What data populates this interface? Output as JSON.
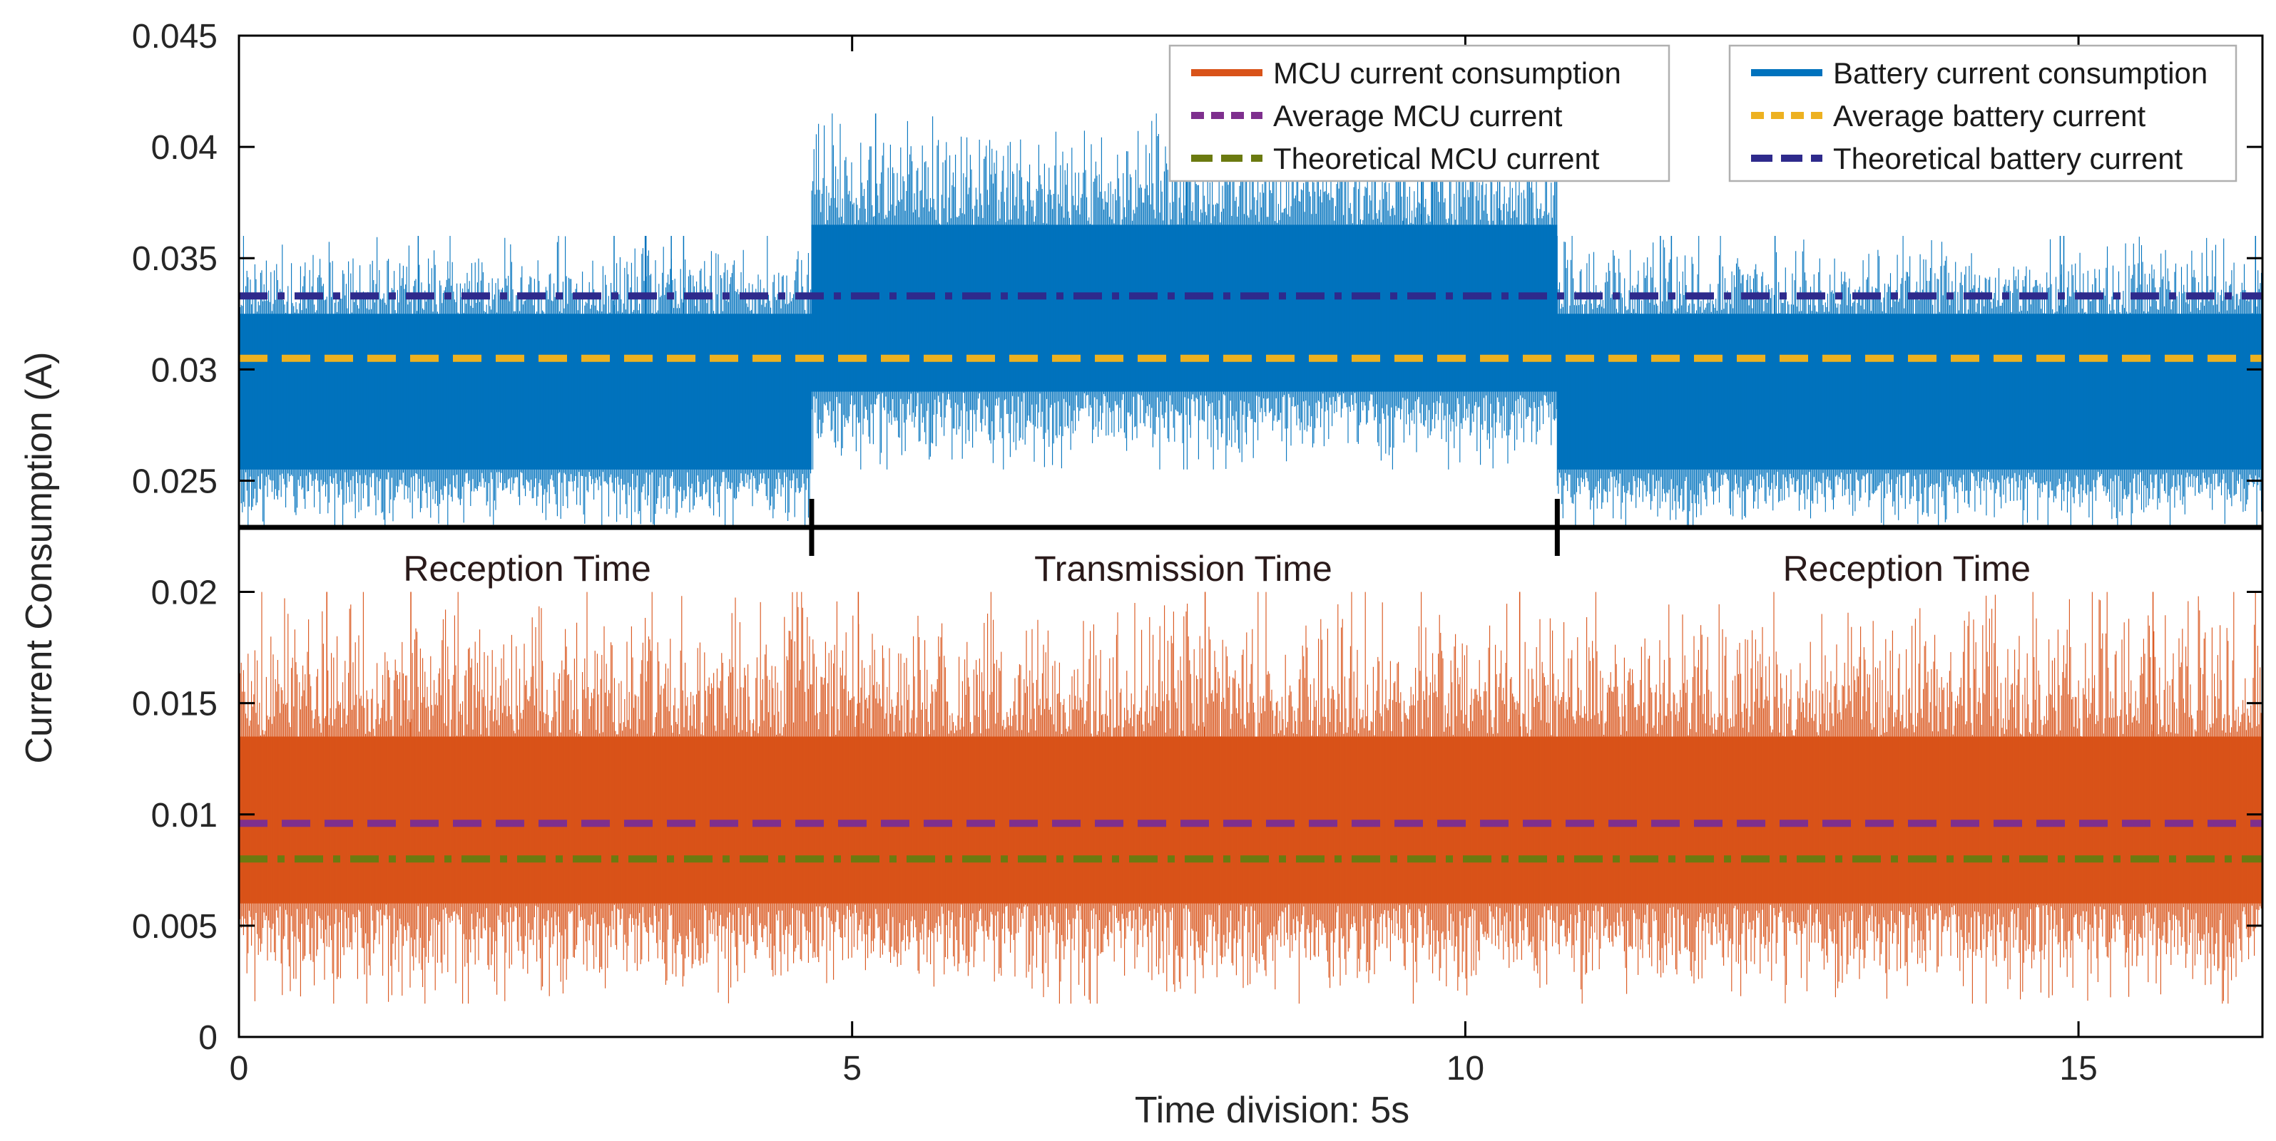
{
  "chart_data": {
    "type": "line",
    "title": "",
    "xlabel": "Time division: 5s",
    "ylabel": "Current Consumption (A)",
    "xlim": [
      0,
      16.5
    ],
    "ylim": [
      0,
      0.045
    ],
    "xticks": [
      0,
      5,
      10,
      15
    ],
    "yticks": [
      0,
      0.005,
      0.01,
      0.015,
      0.02,
      0.025,
      0.03,
      0.035,
      0.04,
      0.045
    ],
    "xtick_labels": [
      "0",
      "5",
      "10",
      "15"
    ],
    "ytick_labels": [
      "0",
      "0.005",
      "0.01",
      "0.015",
      "0.02",
      "0.025",
      "0.03",
      "0.035",
      "0.04",
      "0.045"
    ],
    "colors": {
      "mcu": "#D95319",
      "battery": "#0072BD",
      "avg_mcu": "#7E2F8E",
      "avg_battery": "#EDB120",
      "theo_mcu": "#6B7A10",
      "theo_battery": "#2E2A8C"
    },
    "series": [
      {
        "name": "MCU current consumption",
        "style": "noisy-trace",
        "segments": [
          {
            "x_start": 0,
            "x_end": 16.5,
            "mean": 0.0097,
            "typical_low": 0.006,
            "typical_high": 0.0135,
            "min": 0.0015,
            "max": 0.02
          }
        ]
      },
      {
        "name": "Battery current consumption",
        "style": "noisy-trace",
        "segments": [
          {
            "x_start": 0,
            "x_end": 4.67,
            "mean": 0.0289,
            "typical_low": 0.0255,
            "typical_high": 0.0325,
            "min": 0.0228,
            "max": 0.036
          },
          {
            "x_start": 4.67,
            "x_end": 10.75,
            "mean": 0.0327,
            "typical_low": 0.029,
            "typical_high": 0.0365,
            "min": 0.0255,
            "max": 0.0415
          },
          {
            "x_start": 10.75,
            "x_end": 16.5,
            "mean": 0.0289,
            "typical_low": 0.0255,
            "typical_high": 0.0325,
            "min": 0.0228,
            "max": 0.036
          }
        ]
      },
      {
        "name": "Average MCU current",
        "style": "dash",
        "value": 0.0096
      },
      {
        "name": "Theoretical MCU current",
        "style": "dashdot",
        "value": 0.008
      },
      {
        "name": "Average battery current",
        "style": "dash",
        "value": 0.0305
      },
      {
        "name": "Theoretical battery current",
        "style": "dashdot",
        "value": 0.0333
      }
    ],
    "legend": {
      "placement": "top-right",
      "left_group": [
        "MCU current consumption",
        "Average MCU current",
        "Theoretical MCU current"
      ],
      "right_group": [
        "Battery current consumption",
        "Average battery current",
        "Theoretical battery current"
      ]
    },
    "annotations": {
      "phase_line_y": 0.0229,
      "phase_boundaries": [
        4.67,
        10.75
      ],
      "phases": [
        {
          "label": "Reception Time",
          "x_center": 2.35
        },
        {
          "label": "Transmission Time",
          "x_center": 7.7
        },
        {
          "label": "Reception Time",
          "x_center": 13.6
        }
      ]
    }
  }
}
